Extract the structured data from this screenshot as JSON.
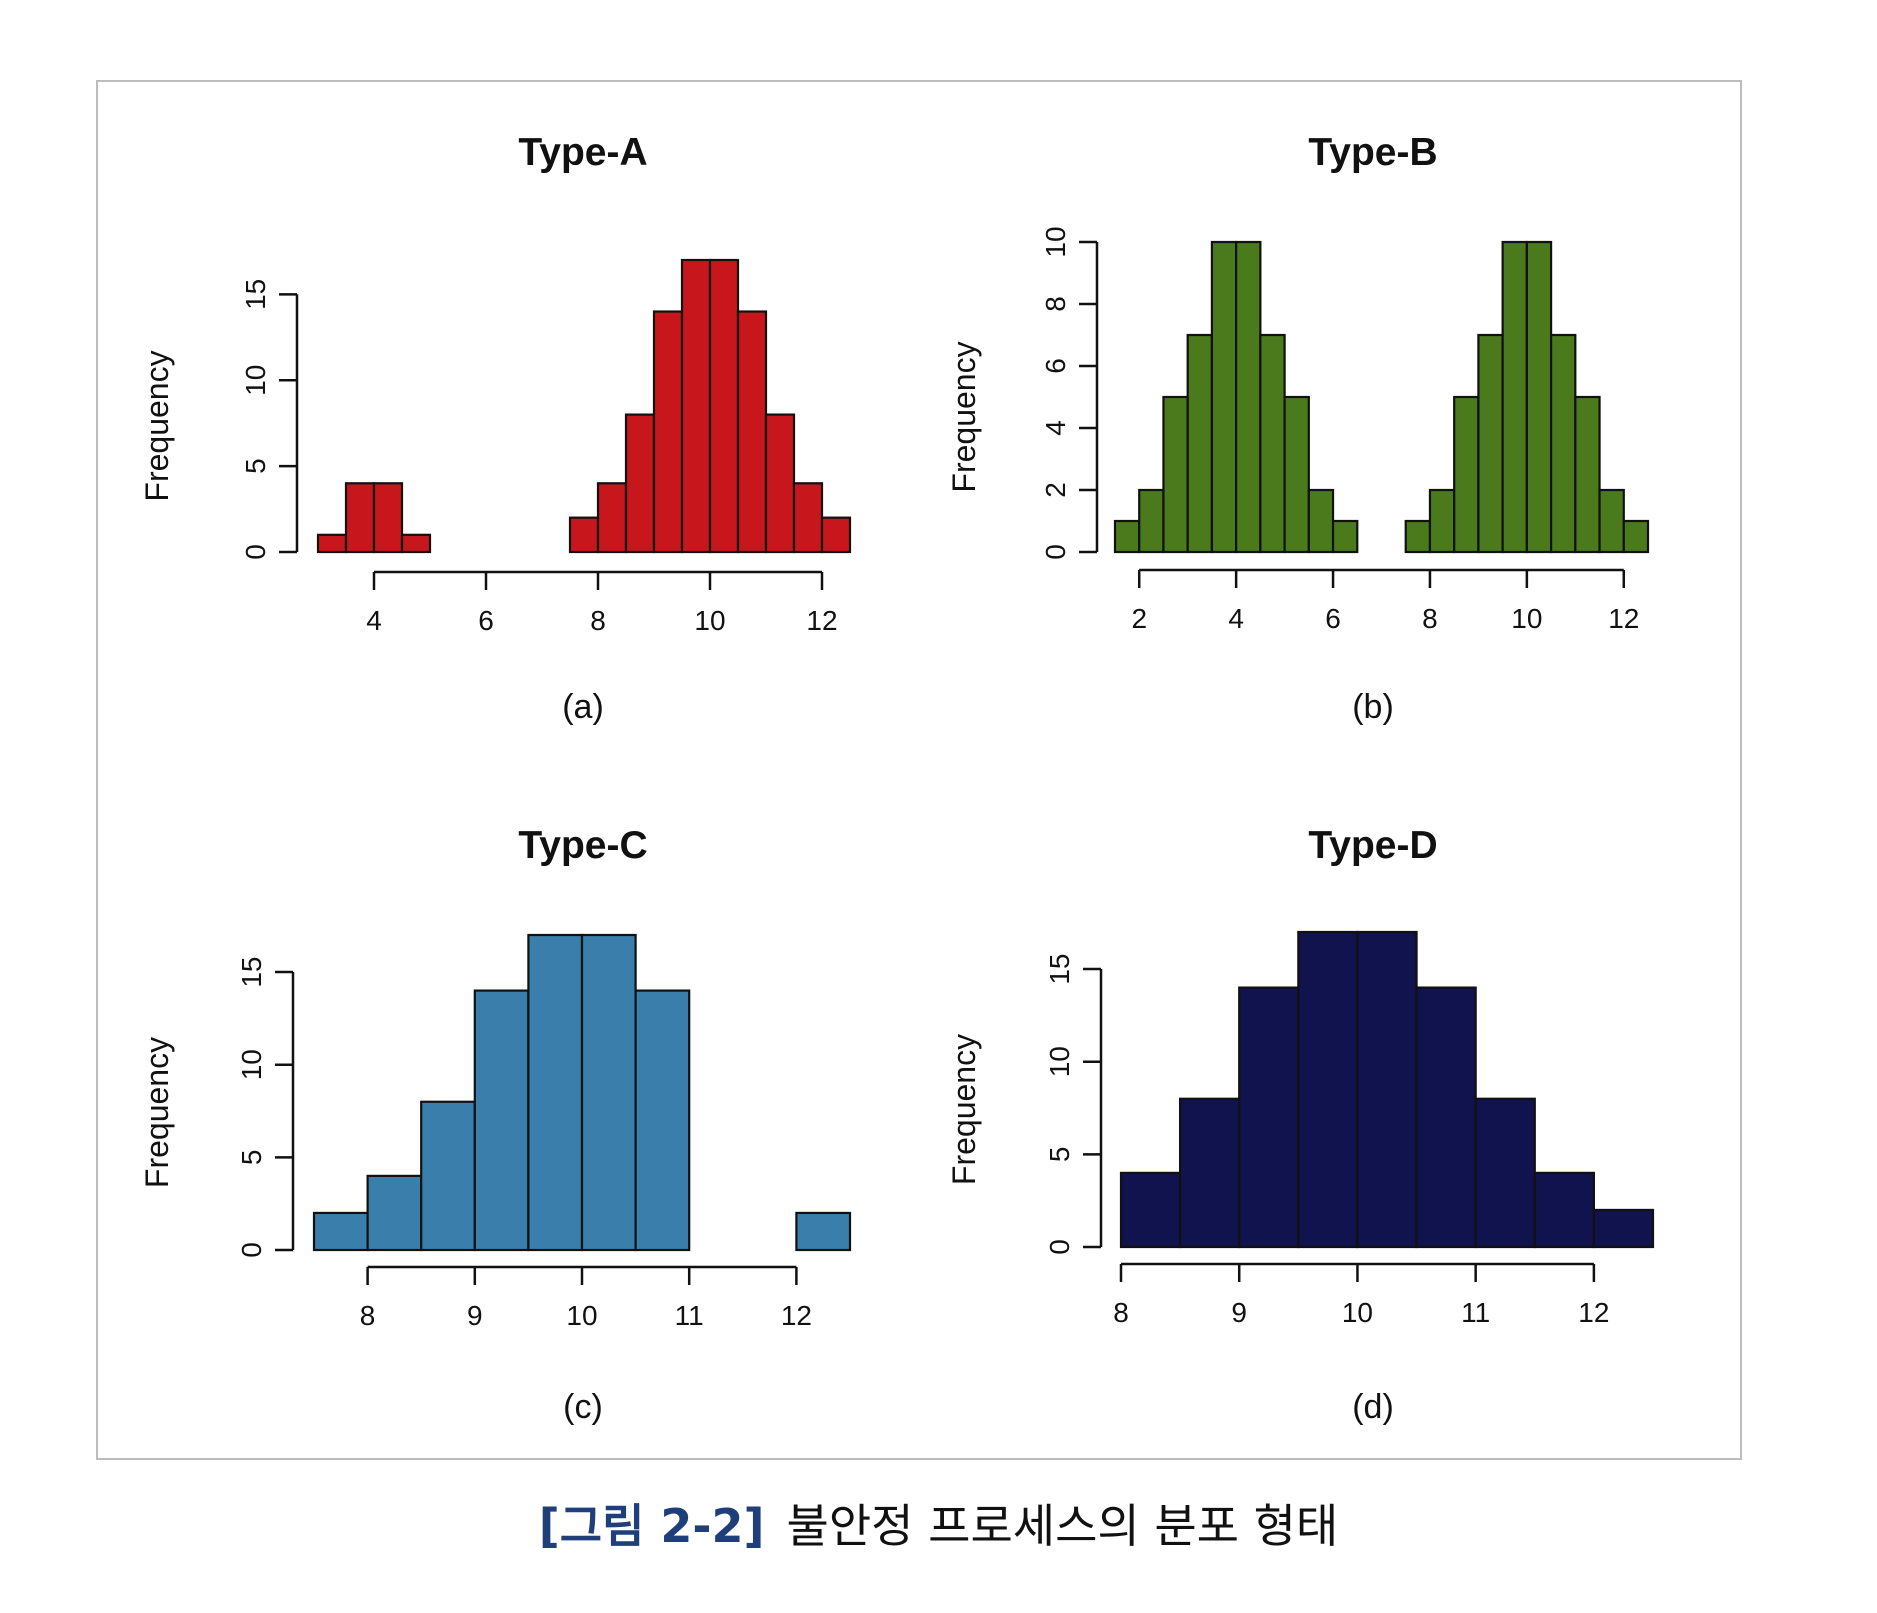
{
  "figure": {
    "caption_label": "[그림 2-2]",
    "caption_text": "불안정 프로세스의 분포 형태"
  },
  "chart_data": [
    {
      "type": "bar",
      "title": "Type-A",
      "caption": "(a)",
      "ylabel": "Frequency",
      "xlabel": "",
      "color": "#c8171c",
      "bin_width": 0.5,
      "bin_starts": [
        3,
        3.5,
        4,
        4.5,
        5,
        5.5,
        6,
        6.5,
        7,
        7.5,
        8,
        8.5,
        9,
        9.5,
        10,
        10.5,
        11,
        11.5,
        12
      ],
      "values": [
        1,
        4,
        4,
        1,
        0,
        0,
        0,
        0,
        0,
        2,
        4,
        8,
        14,
        17,
        17,
        14,
        8,
        4,
        2
      ],
      "xlim": [
        3,
        12.5
      ],
      "ylim": [
        0,
        17
      ],
      "xticks": [
        4,
        6,
        8,
        10,
        12
      ],
      "yticks": [
        0,
        5,
        10,
        15
      ]
    },
    {
      "type": "bar",
      "title": "Type-B",
      "caption": "(b)",
      "ylabel": "Frequency",
      "xlabel": "",
      "color": "#4a7a1c",
      "bin_width": 0.5,
      "bin_starts": [
        1.5,
        2,
        2.5,
        3,
        3.5,
        4,
        4.5,
        5,
        5.5,
        6,
        6.5,
        7,
        7.5,
        8,
        8.5,
        9,
        9.5,
        10,
        10.5,
        11,
        11.5,
        12
      ],
      "values": [
        1,
        2,
        5,
        7,
        10,
        10,
        7,
        5,
        2,
        1,
        0,
        0,
        1,
        2,
        5,
        7,
        10,
        10,
        7,
        5,
        2,
        1
      ],
      "xlim": [
        1.5,
        12.5
      ],
      "ylim": [
        0,
        10
      ],
      "xticks": [
        2,
        4,
        6,
        8,
        10,
        12
      ],
      "yticks": [
        0,
        2,
        4,
        6,
        8,
        10
      ]
    },
    {
      "type": "bar",
      "title": "Type-C",
      "caption": "(c)",
      "ylabel": "Frequency",
      "xlabel": "",
      "color": "#3a7fab",
      "bin_width": 0.5,
      "bin_starts": [
        7.5,
        8,
        8.5,
        9,
        9.5,
        10,
        10.5,
        11,
        11.5,
        12
      ],
      "values": [
        2,
        4,
        8,
        14,
        17,
        17,
        14,
        0,
        0,
        2
      ],
      "xlim": [
        7.5,
        12.5
      ],
      "ylim": [
        0,
        17
      ],
      "xticks": [
        8,
        9,
        10,
        11,
        12
      ],
      "yticks": [
        0,
        5,
        10,
        15
      ]
    },
    {
      "type": "bar",
      "title": "Type-D",
      "caption": "(d)",
      "ylabel": "Frequency",
      "xlabel": "",
      "color": "#10134d",
      "bin_width": 0.5,
      "bin_starts": [
        8,
        8.5,
        9,
        9.5,
        10,
        10.5,
        11,
        11.5,
        12
      ],
      "values": [
        4,
        8,
        14,
        17,
        17,
        14,
        8,
        4,
        2
      ],
      "xlim": [
        8,
        12.5
      ],
      "ylim": [
        0,
        17
      ],
      "xticks": [
        8,
        9,
        10,
        11,
        12
      ],
      "yticks": [
        0,
        5,
        10,
        15
      ]
    }
  ]
}
